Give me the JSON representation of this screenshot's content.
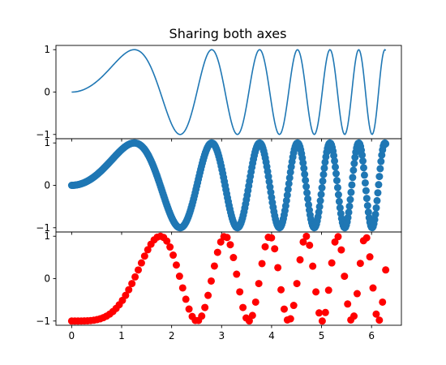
{
  "chart_data": {
    "type": "line",
    "title": "Sharing both axes",
    "sharex": true,
    "sharey": true,
    "xlim": [
      -0.314,
      6.597
    ],
    "ylim": [
      -1.1,
      1.1
    ],
    "xticks": [
      0,
      1,
      2,
      3,
      4,
      5,
      6
    ],
    "yticks": [
      -1,
      0,
      1
    ],
    "xtick_labels": [
      "0",
      "1",
      "2",
      "3",
      "4",
      "5",
      "6"
    ],
    "ytick_labels": [
      "−1",
      "0",
      "1"
    ],
    "grid": false,
    "panels": [
      {
        "kind": "line",
        "function": "y = sin(x^2)",
        "x_range": [
          0,
          6.283
        ],
        "n_points": 400,
        "color": "#1f77b4"
      },
      {
        "kind": "scatter",
        "function": "y = sin(x^2)",
        "x_range": [
          0,
          6.283
        ],
        "n_points": 400,
        "color": "#1f77b4"
      },
      {
        "kind": "scatter",
        "function": "y = -cos(x^2)",
        "x_range": [
          0,
          6.283
        ],
        "n_points": 100,
        "color": "#ff0000"
      }
    ]
  }
}
